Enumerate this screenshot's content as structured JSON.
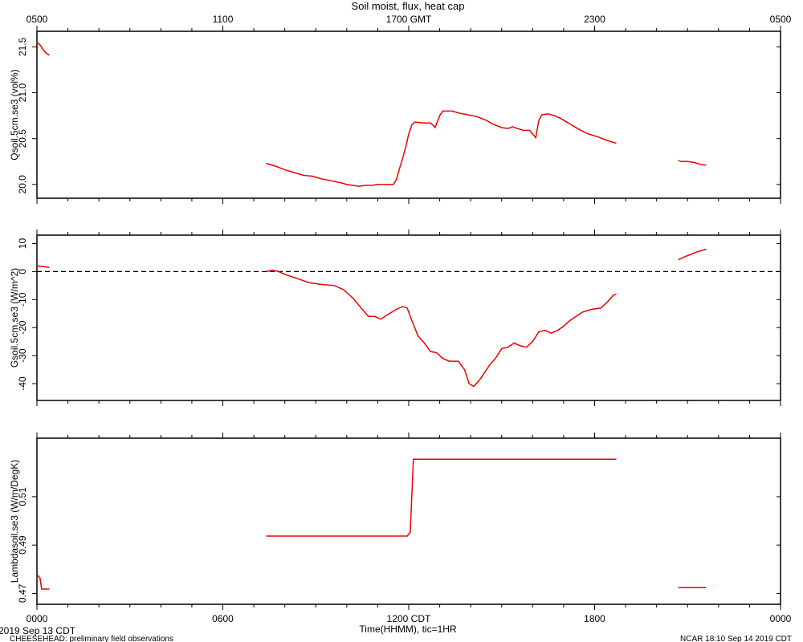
{
  "header": {
    "title": "Soil moist, flux, heat cap"
  },
  "footer": {
    "date_label": "2019 Sep 13 CDT",
    "left_note": "CHEESEHEAD: preliminary field observations",
    "right_note": "NCAR 18:10 Sep 14 2019 CDT"
  },
  "colors": {
    "series": "#ee0000",
    "axis": "#000000"
  },
  "chart_data": {
    "type": "line",
    "title": "Soil moist, flux, heat cap",
    "xlabel": "Time(HHMM), tic=1HR",
    "xlim": [
      0,
      24
    ],
    "x_units": "hours since 0000 CDT, 2019 Sep 13",
    "bottom_ticks": [
      {
        "x": 0,
        "label": "0000"
      },
      {
        "x": 6,
        "label": "0600"
      },
      {
        "x": 12,
        "label": "1200 CDT"
      },
      {
        "x": 18,
        "label": "1800"
      },
      {
        "x": 24,
        "label": "0000"
      }
    ],
    "top_ticks": [
      {
        "x": 0,
        "label": "0500"
      },
      {
        "x": 6,
        "label": "1100"
      },
      {
        "x": 12,
        "label": "1700 GMT"
      },
      {
        "x": 18,
        "label": "2300"
      },
      {
        "x": 24,
        "label": "0500"
      }
    ],
    "panels": [
      {
        "ylabel": "Qsoil.5cm.se3 (vol%)",
        "ylim": [
          19.85,
          21.67
        ],
        "yticks": [
          20.0,
          20.5,
          21.0,
          21.5
        ],
        "yticklabels": [
          "20.0",
          "20.5",
          "21.0",
          "21.5"
        ],
        "zero_line": false,
        "segments": [
          [
            [
              0.0,
              21.55
            ],
            [
              0.1,
              21.52
            ],
            [
              0.2,
              21.47
            ],
            [
              0.3,
              21.43
            ],
            [
              0.4,
              21.41
            ]
          ],
          [
            [
              7.4,
              20.23
            ],
            [
              7.7,
              20.2
            ],
            [
              8.0,
              20.16
            ],
            [
              8.3,
              20.13
            ],
            [
              8.6,
              20.1
            ],
            [
              8.9,
              20.09
            ],
            [
              9.2,
              20.06
            ],
            [
              9.5,
              20.04
            ],
            [
              9.8,
              20.02
            ],
            [
              10.0,
              20.0
            ],
            [
              10.2,
              19.99
            ],
            [
              10.4,
              19.98
            ],
            [
              10.6,
              19.99
            ],
            [
              10.8,
              19.99
            ],
            [
              11.0,
              20.0
            ],
            [
              11.2,
              20.0
            ],
            [
              11.4,
              20.0
            ],
            [
              11.5,
              20.0
            ],
            [
              11.6,
              20.05
            ],
            [
              11.7,
              20.17
            ],
            [
              11.8,
              20.28
            ],
            [
              11.9,
              20.4
            ],
            [
              12.0,
              20.55
            ],
            [
              12.1,
              20.65
            ],
            [
              12.2,
              20.68
            ],
            [
              12.5,
              20.67
            ],
            [
              12.7,
              20.67
            ],
            [
              12.8,
              20.64
            ],
            [
              12.85,
              20.62
            ],
            [
              13.0,
              20.75
            ],
            [
              13.1,
              20.8
            ],
            [
              13.4,
              20.8
            ],
            [
              13.6,
              20.78
            ],
            [
              13.9,
              20.76
            ],
            [
              14.2,
              20.74
            ],
            [
              14.5,
              20.7
            ],
            [
              14.7,
              20.66
            ],
            [
              15.0,
              20.62
            ],
            [
              15.2,
              20.61
            ],
            [
              15.35,
              20.63
            ],
            [
              15.5,
              20.61
            ],
            [
              15.7,
              20.59
            ],
            [
              15.9,
              20.59
            ],
            [
              16.0,
              20.55
            ],
            [
              16.1,
              20.51
            ],
            [
              16.2,
              20.7
            ],
            [
              16.3,
              20.76
            ],
            [
              16.5,
              20.77
            ],
            [
              16.7,
              20.75
            ],
            [
              16.9,
              20.72
            ],
            [
              17.2,
              20.66
            ],
            [
              17.5,
              20.6
            ],
            [
              17.8,
              20.55
            ],
            [
              18.1,
              20.52
            ],
            [
              18.4,
              20.48
            ],
            [
              18.6,
              20.46
            ],
            [
              18.7,
              20.45
            ]
          ],
          [
            [
              20.7,
              20.26
            ],
            [
              20.8,
              20.25
            ],
            [
              21.0,
              20.25
            ],
            [
              21.2,
              20.24
            ],
            [
              21.4,
              20.22
            ],
            [
              21.6,
              20.21
            ]
          ]
        ]
      },
      {
        "ylabel": "Gsoil.5cm.se3 (W/m^2)",
        "ylim": [
          -46.0,
          13.0
        ],
        "yticks": [
          -40,
          -30,
          -20,
          -10,
          0,
          10
        ],
        "yticklabels": [
          "-40",
          "-30",
          "-20",
          "-10",
          "0",
          "10"
        ],
        "zero_line": true,
        "segments": [
          [
            [
              0.0,
              2.0
            ],
            [
              0.2,
              1.8
            ],
            [
              0.4,
              1.5
            ]
          ],
          [
            [
              7.4,
              0.0
            ],
            [
              7.6,
              0.5
            ],
            [
              7.8,
              0.0
            ],
            [
              8.0,
              -1.0
            ],
            [
              8.4,
              -2.5
            ],
            [
              8.8,
              -4.0
            ],
            [
              9.2,
              -4.6
            ],
            [
              9.6,
              -5.0
            ],
            [
              9.9,
              -6.5
            ],
            [
              10.2,
              -9.5
            ],
            [
              10.5,
              -13.5
            ],
            [
              10.7,
              -16.0
            ],
            [
              10.9,
              -16.0
            ],
            [
              11.1,
              -17.0
            ],
            [
              11.3,
              -15.5
            ],
            [
              11.6,
              -13.5
            ],
            [
              11.8,
              -12.5
            ],
            [
              11.95,
              -13.0
            ],
            [
              12.1,
              -17.5
            ],
            [
              12.3,
              -23.0
            ],
            [
              12.5,
              -25.5
            ],
            [
              12.7,
              -28.5
            ],
            [
              12.9,
              -29.0
            ],
            [
              13.1,
              -31.0
            ],
            [
              13.3,
              -32.0
            ],
            [
              13.6,
              -32.0
            ],
            [
              13.8,
              -35.0
            ],
            [
              13.95,
              -40.0
            ],
            [
              14.1,
              -41.0
            ],
            [
              14.3,
              -38.5
            ],
            [
              14.6,
              -33.5
            ],
            [
              14.8,
              -31.0
            ],
            [
              15.0,
              -27.5
            ],
            [
              15.2,
              -27.0
            ],
            [
              15.4,
              -25.5
            ],
            [
              15.6,
              -26.5
            ],
            [
              15.8,
              -27.0
            ],
            [
              16.0,
              -25.0
            ],
            [
              16.2,
              -21.5
            ],
            [
              16.4,
              -21.0
            ],
            [
              16.6,
              -22.0
            ],
            [
              16.8,
              -21.0
            ],
            [
              17.0,
              -19.5
            ],
            [
              17.2,
              -17.5
            ],
            [
              17.4,
              -16.0
            ],
            [
              17.6,
              -14.5
            ],
            [
              17.9,
              -13.5
            ],
            [
              18.2,
              -13.0
            ],
            [
              18.4,
              -11.0
            ],
            [
              18.6,
              -8.5
            ],
            [
              18.7,
              -8.0
            ]
          ],
          [
            [
              20.7,
              4.2
            ],
            [
              21.0,
              5.7
            ],
            [
              21.3,
              7.0
            ],
            [
              21.6,
              8.0
            ]
          ]
        ]
      },
      {
        "ylabel": "Lambdasoil.se3 (W/m/DegK)",
        "ylim": [
          0.4655,
          0.5342
        ],
        "yticks": [
          0.47,
          0.49,
          0.51
        ],
        "yticklabels": [
          "0.47",
          "0.49",
          "0.51"
        ],
        "zero_line": false,
        "segments": [
          [
            [
              0.0,
              0.4778
            ],
            [
              0.1,
              0.4763
            ],
            [
              0.15,
              0.4718
            ],
            [
              0.3,
              0.4718
            ],
            [
              0.4,
              0.4718
            ]
          ],
          [
            [
              7.4,
              0.4937
            ],
            [
              11.95,
              0.4937
            ],
            [
              12.05,
              0.4953
            ],
            [
              12.15,
              0.5255
            ],
            [
              18.7,
              0.5255
            ]
          ],
          [
            [
              20.7,
              0.4724
            ],
            [
              21.6,
              0.4724
            ]
          ]
        ]
      }
    ]
  }
}
